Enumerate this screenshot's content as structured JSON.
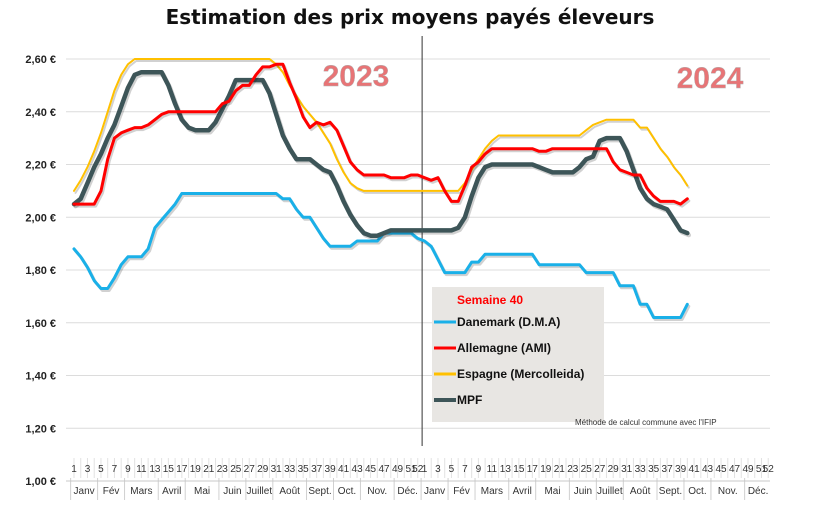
{
  "chart_data": {
    "type": "line",
    "title": "Estimation des prix moyens payés éleveurs",
    "xlabel": "",
    "ylabel": "",
    "ylim": [
      1.0,
      2.6
    ],
    "yticks": [
      "1,00 €",
      "1,20 €",
      "1,40 €",
      "1,60 €",
      "1,80 €",
      "2,00 €",
      "2,20 €",
      "2,40 €",
      "2,60 €"
    ],
    "ytick_values": [
      1.0,
      1.2,
      1.4,
      1.6,
      1.8,
      2.0,
      2.2,
      2.4,
      2.6
    ],
    "grid": true,
    "year_labels": [
      "2023",
      "2024"
    ],
    "weeks_per_year": 52,
    "week_tick_labels": [
      "1",
      "3",
      "5",
      "7",
      "9",
      "11",
      "13",
      "15",
      "17",
      "19",
      "21",
      "23",
      "25",
      "27",
      "29",
      "31",
      "33",
      "35",
      "37",
      "39",
      "41",
      "43",
      "45",
      "47",
      "49",
      "51",
      "52"
    ],
    "months": [
      "Janv",
      "Fév",
      "Mars",
      "Avril",
      "Mai",
      "Juin",
      "Juillet",
      "Août",
      "Sept.",
      "Oct.",
      "Nov.",
      "Déc."
    ],
    "month_start_weeks": [
      1,
      5,
      9,
      14,
      18,
      23,
      27,
      31,
      36,
      40,
      44,
      49
    ],
    "legend": {
      "title": "Semaine 40",
      "position": "center-bottom"
    },
    "note": "Méthode de calcul commune avec l'IFIP",
    "series": [
      {
        "name": "Danemark (D.M.A)",
        "color": "#1ab0e8",
        "values_2023": [
          1.88,
          1.85,
          1.81,
          1.76,
          1.73,
          1.73,
          1.77,
          1.82,
          1.85,
          1.85,
          1.85,
          1.88,
          1.96,
          1.99,
          2.02,
          2.05,
          2.09,
          2.09,
          2.09,
          2.09,
          2.09,
          2.09,
          2.09,
          2.09,
          2.09,
          2.09,
          2.09,
          2.09,
          2.09,
          2.09,
          2.09,
          2.07,
          2.07,
          2.03,
          2.0,
          2.0,
          1.96,
          1.92,
          1.89,
          1.89,
          1.89,
          1.89,
          1.91,
          1.91,
          1.91,
          1.91,
          1.94,
          1.94,
          1.94,
          1.94,
          1.94,
          1.92
        ],
        "values_2024": [
          1.91,
          1.89,
          1.84,
          1.79,
          1.79,
          1.79,
          1.79,
          1.83,
          1.83,
          1.86,
          1.86,
          1.86,
          1.86,
          1.86,
          1.86,
          1.86,
          1.86,
          1.82,
          1.82,
          1.82,
          1.82,
          1.82,
          1.82,
          1.82,
          1.79,
          1.79,
          1.79,
          1.79,
          1.79,
          1.74,
          1.74,
          1.74,
          1.67,
          1.67,
          1.62,
          1.62,
          1.62,
          1.62,
          1.62,
          1.67
        ]
      },
      {
        "name": "Allemagne (AMI)",
        "color": "#ff0000",
        "values_2023": [
          2.05,
          2.05,
          2.05,
          2.05,
          2.1,
          2.22,
          2.3,
          2.32,
          2.33,
          2.34,
          2.34,
          2.35,
          2.37,
          2.39,
          2.4,
          2.4,
          2.4,
          2.4,
          2.4,
          2.4,
          2.4,
          2.4,
          2.43,
          2.44,
          2.48,
          2.5,
          2.5,
          2.54,
          2.57,
          2.57,
          2.58,
          2.58,
          2.51,
          2.45,
          2.38,
          2.34,
          2.36,
          2.35,
          2.36,
          2.33,
          2.27,
          2.21,
          2.18,
          2.16,
          2.16,
          2.16,
          2.16,
          2.15,
          2.15,
          2.15,
          2.16,
          2.16
        ],
        "values_2024": [
          2.15,
          2.14,
          2.15,
          2.1,
          2.06,
          2.06,
          2.12,
          2.19,
          2.21,
          2.24,
          2.26,
          2.26,
          2.26,
          2.26,
          2.26,
          2.26,
          2.26,
          2.25,
          2.25,
          2.26,
          2.26,
          2.26,
          2.26,
          2.26,
          2.26,
          2.26,
          2.26,
          2.26,
          2.21,
          2.18,
          2.17,
          2.16,
          2.16,
          2.11,
          2.08,
          2.06,
          2.06,
          2.06,
          2.05,
          2.07
        ]
      },
      {
        "name": "Espagne (Mercolleida)",
        "color": "#ffc000",
        "values_2023": [
          2.1,
          2.14,
          2.19,
          2.25,
          2.32,
          2.4,
          2.48,
          2.54,
          2.58,
          2.6,
          2.6,
          2.6,
          2.6,
          2.6,
          2.6,
          2.6,
          2.6,
          2.6,
          2.6,
          2.6,
          2.6,
          2.6,
          2.6,
          2.6,
          2.6,
          2.6,
          2.6,
          2.6,
          2.6,
          2.6,
          2.58,
          2.55,
          2.5,
          2.46,
          2.42,
          2.39,
          2.36,
          2.32,
          2.28,
          2.22,
          2.17,
          2.13,
          2.11,
          2.1,
          2.1,
          2.1,
          2.1,
          2.1,
          2.1,
          2.1,
          2.1,
          2.1
        ],
        "values_2024": [
          2.1,
          2.1,
          2.1,
          2.1,
          2.1,
          2.1,
          2.13,
          2.18,
          2.22,
          2.26,
          2.29,
          2.31,
          2.31,
          2.31,
          2.31,
          2.31,
          2.31,
          2.31,
          2.31,
          2.31,
          2.31,
          2.31,
          2.31,
          2.31,
          2.33,
          2.35,
          2.36,
          2.37,
          2.37,
          2.37,
          2.37,
          2.37,
          2.34,
          2.34,
          2.3,
          2.26,
          2.23,
          2.19,
          2.16,
          2.12
        ]
      },
      {
        "name": "MPF",
        "color": "#3d5558",
        "values_2023": [
          2.05,
          2.07,
          2.13,
          2.19,
          2.24,
          2.3,
          2.35,
          2.42,
          2.49,
          2.54,
          2.55,
          2.55,
          2.55,
          2.55,
          2.5,
          2.43,
          2.37,
          2.34,
          2.33,
          2.33,
          2.33,
          2.36,
          2.41,
          2.46,
          2.52,
          2.52,
          2.52,
          2.52,
          2.52,
          2.47,
          2.39,
          2.31,
          2.26,
          2.22,
          2.22,
          2.22,
          2.2,
          2.18,
          2.17,
          2.12,
          2.06,
          2.01,
          1.97,
          1.94,
          1.93,
          1.93,
          1.94,
          1.95,
          1.95,
          1.95,
          1.95,
          1.95
        ],
        "values_2024": [
          1.95,
          1.95,
          1.95,
          1.95,
          1.95,
          1.96,
          2.0,
          2.08,
          2.15,
          2.19,
          2.2,
          2.2,
          2.2,
          2.2,
          2.2,
          2.2,
          2.2,
          2.19,
          2.18,
          2.17,
          2.17,
          2.17,
          2.17,
          2.19,
          2.22,
          2.23,
          2.29,
          2.3,
          2.3,
          2.3,
          2.25,
          2.18,
          2.11,
          2.07,
          2.05,
          2.04,
          2.03,
          1.99,
          1.95,
          1.94
        ]
      }
    ]
  }
}
